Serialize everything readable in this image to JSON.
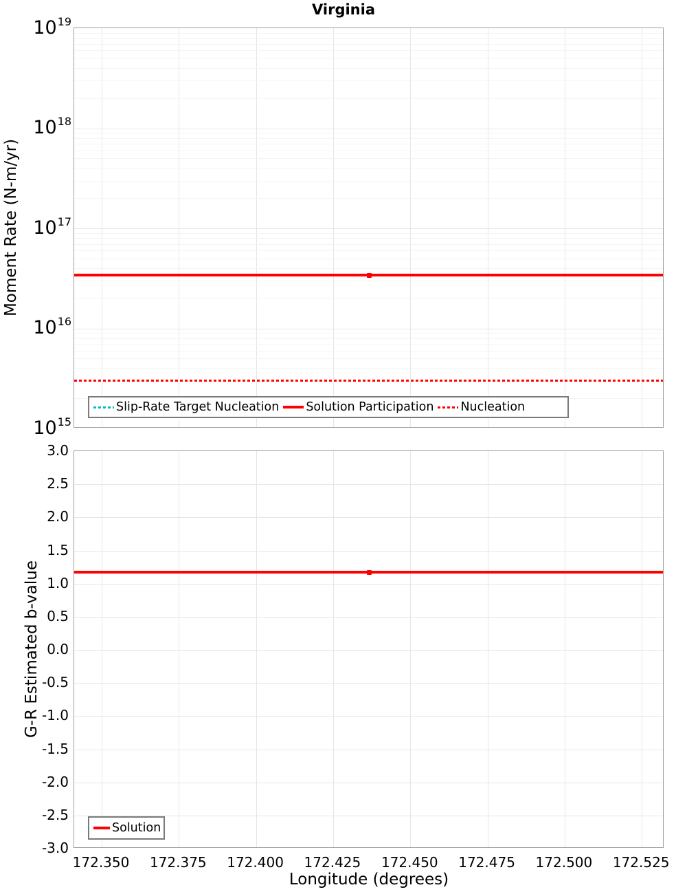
{
  "style": {
    "axis_border": "#9e9e9e",
    "grid_major": "#e6e6e6",
    "grid_minor": "#f4f4f4",
    "legend_border": "#7a7a7a",
    "red": "#ff0000",
    "teal": "#00bfbf"
  },
  "chart_data": [
    {
      "type": "line",
      "panel": "moment-rate",
      "title": "Virginia",
      "ylabel": "Moment Rate (N-m/yr)",
      "yscale": "log",
      "ylim": [
        1000000000000000.0,
        1e+19
      ],
      "ytick_exponents": [
        19,
        18,
        17,
        16,
        15
      ],
      "xlim": [
        172.3411,
        172.5323
      ],
      "xtick_values": [
        172.35,
        172.375,
        172.4,
        172.425,
        172.45,
        172.475,
        172.5,
        172.525
      ],
      "xtick_labels": [],
      "grid": true,
      "legend_position": "lower-left",
      "series": [
        {
          "name": "Slip-Rate Target Nucleation",
          "color": "#00bfbf",
          "dash": "dotted",
          "y": 3000000000000000.0
        },
        {
          "name": "Solution Participation",
          "color": "#ff0000",
          "dash": "solid",
          "y": 3.4e+16,
          "marker_x": 172.4367
        },
        {
          "name": "Nucleation",
          "color": "#ff0000",
          "dash": "dotted",
          "y": 3000000000000000.0
        }
      ]
    },
    {
      "type": "line",
      "panel": "b-value",
      "title": "",
      "ylabel": "G-R Estimated b-value",
      "xlabel": "Longitude (degrees)",
      "yscale": "linear",
      "ylim": [
        -3.0,
        3.0
      ],
      "ytick_values": [
        3.0,
        2.5,
        2.0,
        1.5,
        1.0,
        0.5,
        0.0,
        -0.5,
        -1.0,
        -1.5,
        -2.0,
        -2.5,
        -3.0
      ],
      "ytick_labels": [
        "3.0",
        "2.5",
        "2.0",
        "1.5",
        "1.0",
        "0.5",
        "0.0",
        "-0.5",
        "-1.0",
        "-1.5",
        "-2.0",
        "-2.5",
        "-3.0"
      ],
      "xlim": [
        172.3411,
        172.5323
      ],
      "xtick_values": [
        172.35,
        172.375,
        172.4,
        172.425,
        172.45,
        172.475,
        172.5,
        172.525
      ],
      "xtick_labels": [
        "172.350",
        "172.375",
        "172.400",
        "172.425",
        "172.450",
        "172.475",
        "172.500",
        "172.525"
      ],
      "grid": true,
      "legend_position": "lower-left",
      "series": [
        {
          "name": "Solution",
          "color": "#ff0000",
          "dash": "solid",
          "y": 1.17,
          "marker_x": 172.4367
        }
      ]
    }
  ]
}
